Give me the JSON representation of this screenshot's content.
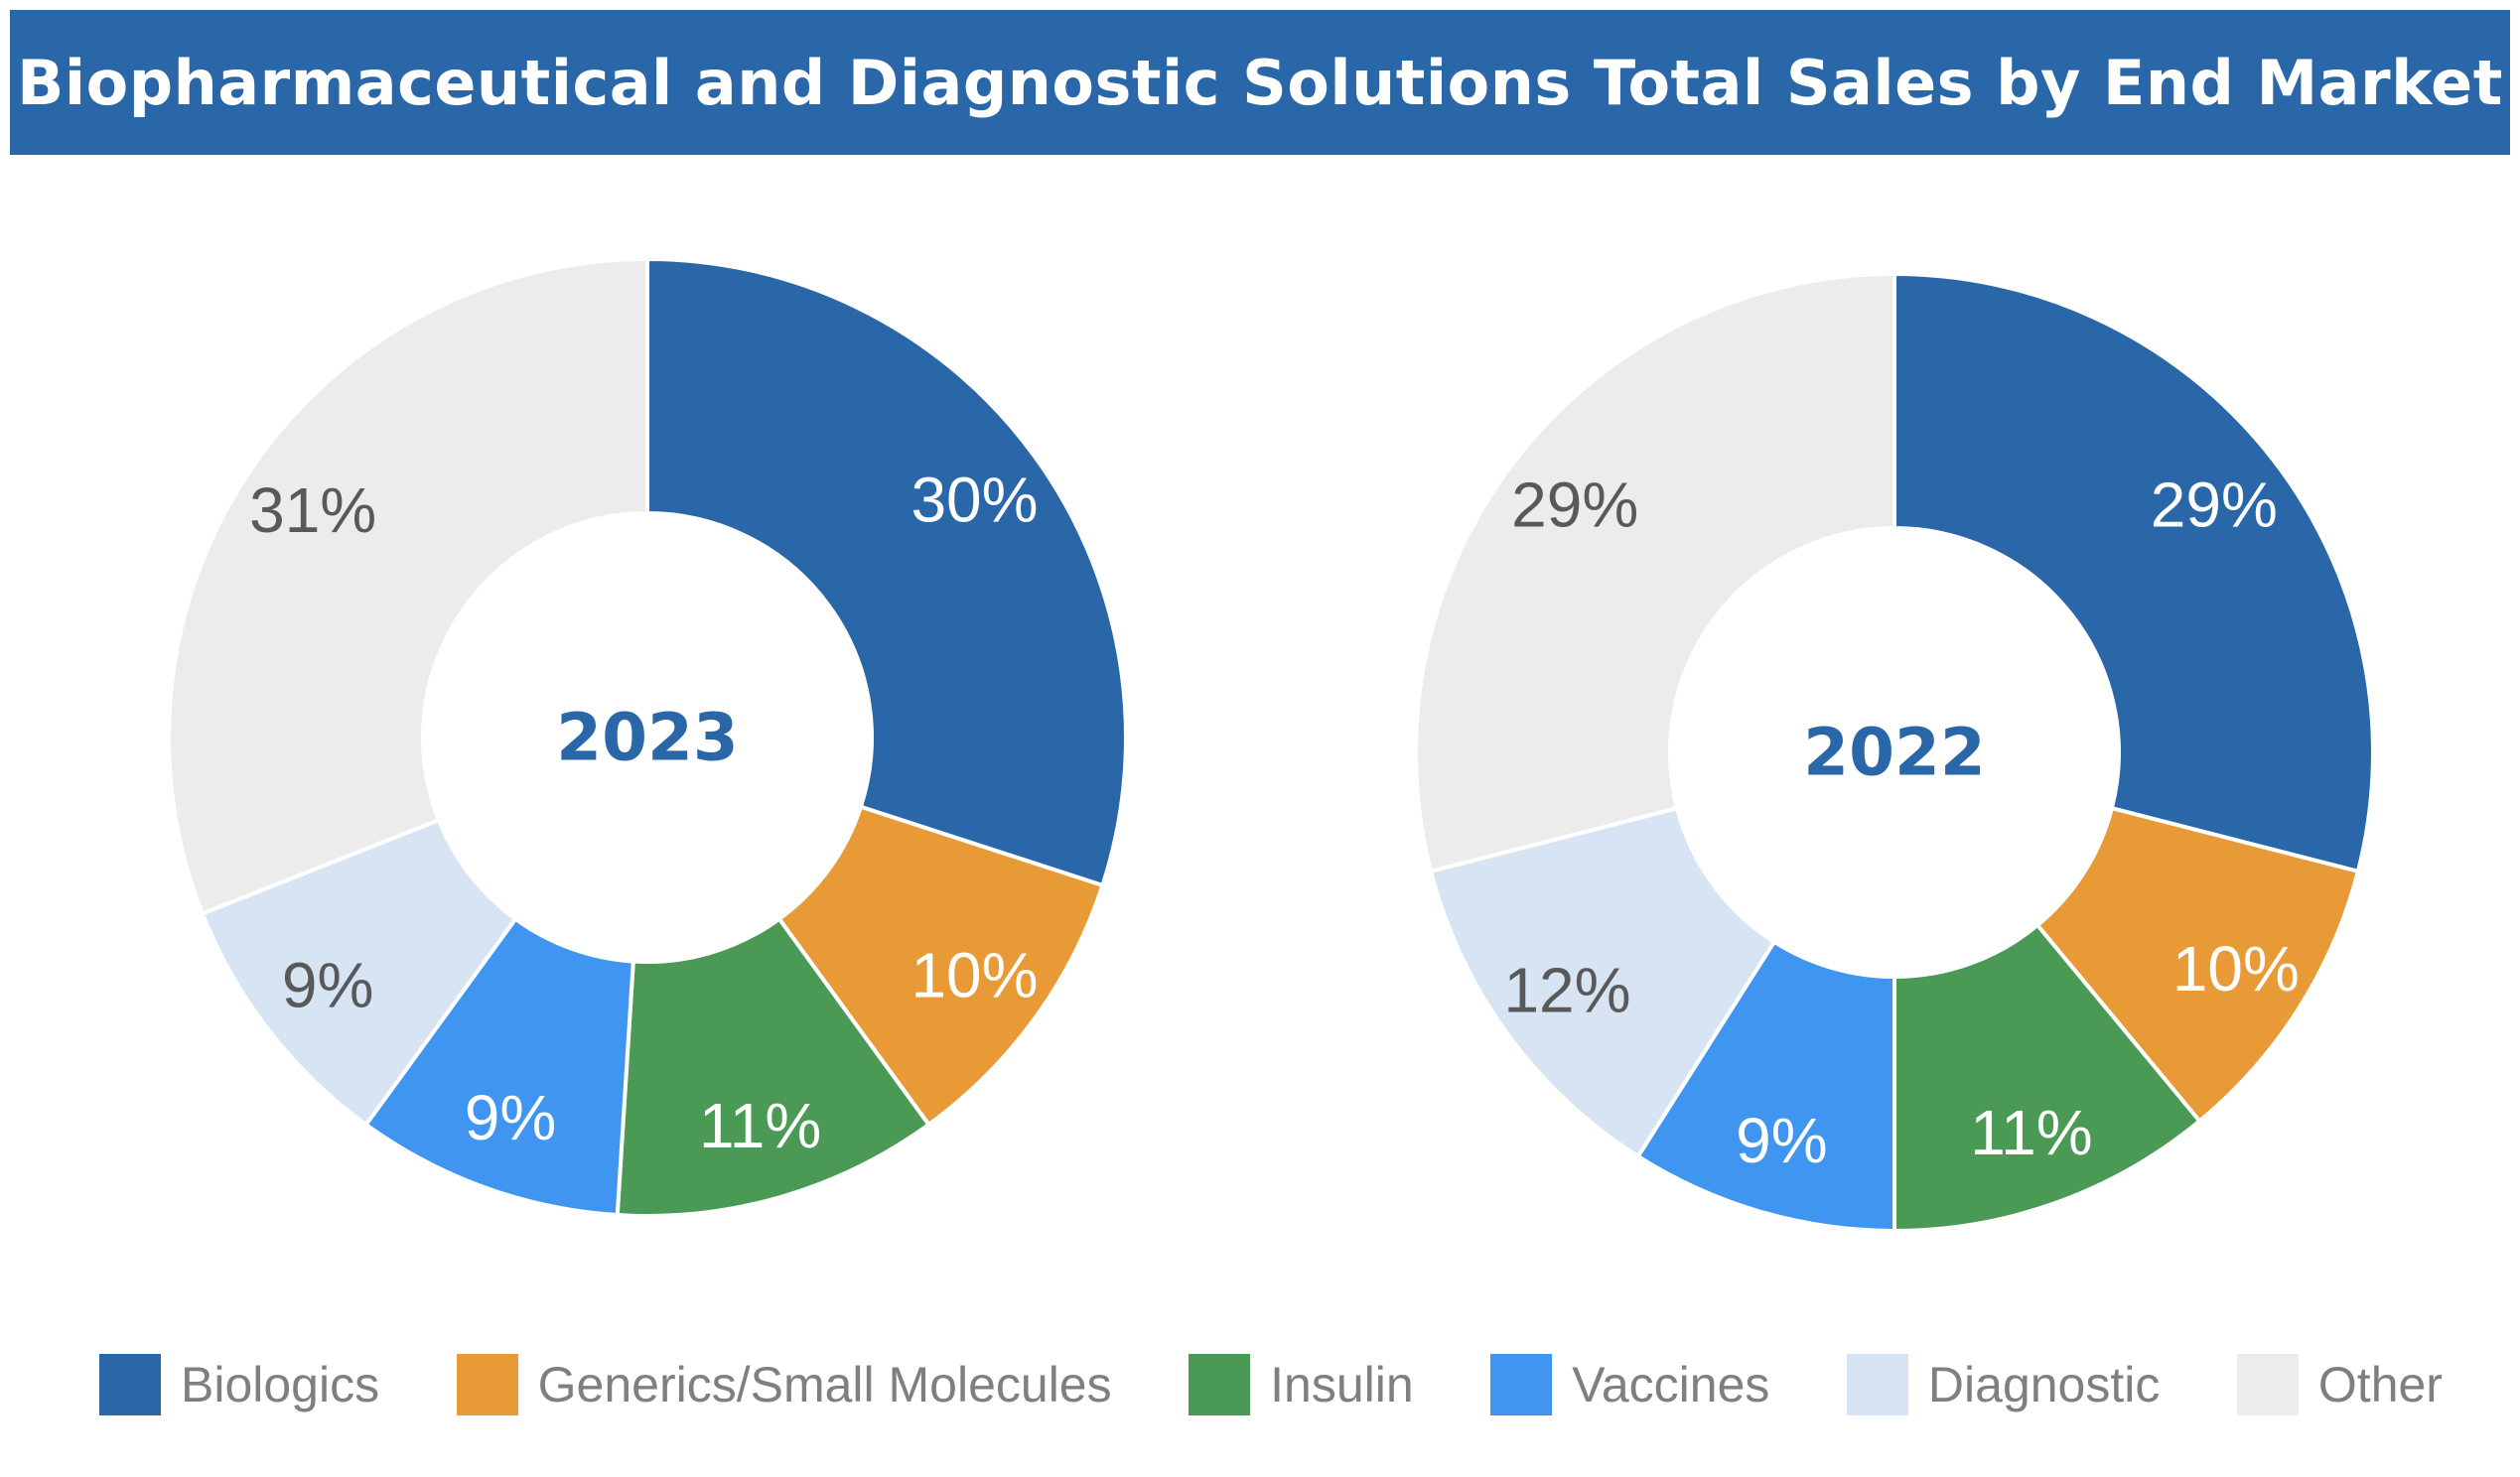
{
  "title": "Biopharmaceutical and Diagnostic Solutions Total Sales by End Market",
  "colors": {
    "title_bar": "#2a67a8",
    "title_text": "#ffffff",
    "center_label": "#2a67a8",
    "label_dark": "#595959",
    "label_light": "#ffffff",
    "legend_text": "#7f7f7f",
    "slice_border": "#ffffff"
  },
  "legend": {
    "items": [
      {
        "name": "Biologics",
        "color": "#2a67a8"
      },
      {
        "name": "Generics/Small Molecules",
        "color": "#e89a36"
      },
      {
        "name": "Insulin",
        "color": "#4a9a55"
      },
      {
        "name": "Vaccines",
        "color": "#3f95ef"
      },
      {
        "name": "Diagnostic",
        "color": "#d7e4f3"
      },
      {
        "name": "Other",
        "color": "#ececec"
      }
    ]
  },
  "chart_data": [
    {
      "type": "pie",
      "title": "2023",
      "categories": [
        "Biologics",
        "Generics/Small Molecules",
        "Insulin",
        "Vaccines",
        "Diagnostic",
        "Other"
      ],
      "values": [
        30,
        10,
        11,
        9,
        9,
        31
      ],
      "labels": [
        "30%",
        "10%",
        "11%",
        "9%",
        "9%",
        "31%"
      ],
      "label_colors": [
        "#ffffff",
        "#ffffff",
        "#ffffff",
        "#ffffff",
        "#595959",
        "#595959"
      ],
      "colors": [
        "#2a67a8",
        "#e89a36",
        "#4a9a55",
        "#3f95ef",
        "#d7e4f3",
        "#ececec"
      ]
    },
    {
      "type": "pie",
      "title": "2022",
      "categories": [
        "Biologics",
        "Generics/Small Molecules",
        "Insulin",
        "Vaccines",
        "Diagnostic",
        "Other"
      ],
      "values": [
        29,
        10,
        11,
        9,
        12,
        29
      ],
      "labels": [
        "29%",
        "10%",
        "11%",
        "9%",
        "12%",
        "29%"
      ],
      "label_colors": [
        "#ffffff",
        "#ffffff",
        "#ffffff",
        "#ffffff",
        "#595959",
        "#595959"
      ],
      "colors": [
        "#2a67a8",
        "#e89a36",
        "#4a9a55",
        "#3f95ef",
        "#d7e4f3",
        "#ececec"
      ]
    }
  ]
}
